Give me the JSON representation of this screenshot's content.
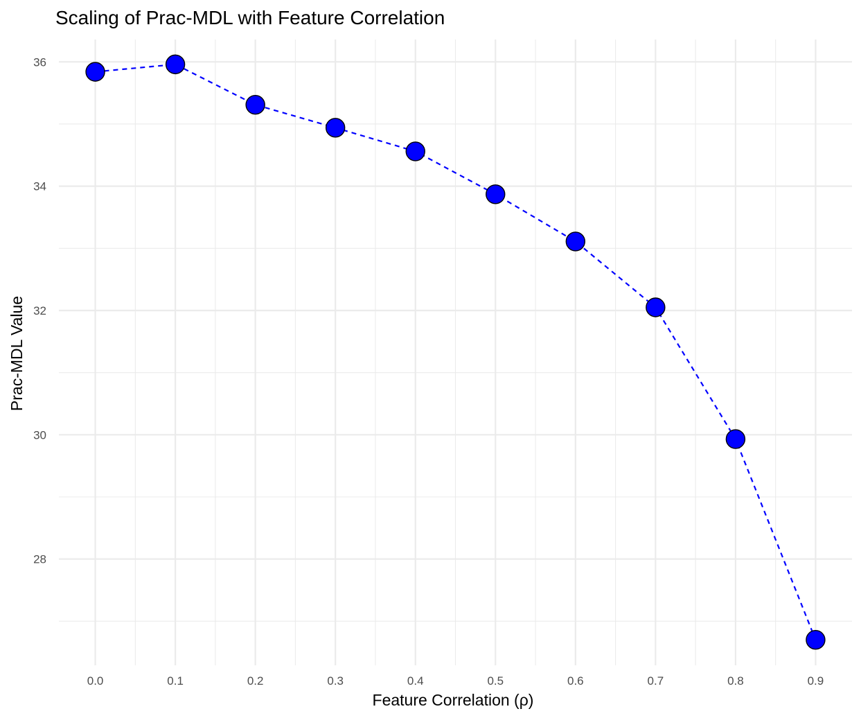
{
  "chart_data": {
    "type": "line",
    "title": "Scaling of Prac-MDL with Feature Correlation",
    "xlabel": "Feature Correlation (ρ)",
    "ylabel": "Prac-MDL Value",
    "x": [
      0.0,
      0.1,
      0.2,
      0.3,
      0.4,
      0.5,
      0.6,
      0.7,
      0.8,
      0.9
    ],
    "series": [
      {
        "values": [
          35.84,
          35.96,
          35.31,
          34.94,
          34.56,
          33.87,
          33.11,
          32.05,
          29.93,
          26.7
        ],
        "line_style": "dashed",
        "line_color": "#0000ff",
        "marker_fill": "#0000ff",
        "marker_edge": "#000000"
      }
    ],
    "xticks": [
      "0.0",
      "0.1",
      "0.2",
      "0.3",
      "0.4",
      "0.5",
      "0.6",
      "0.7",
      "0.8",
      "0.9"
    ],
    "yticks": [
      "28",
      "30",
      "32",
      "34",
      "36"
    ],
    "xlim": [
      -0.0455,
      0.9455
    ],
    "ylim": [
      26.29,
      36.36
    ],
    "grid": true,
    "legend": "none"
  }
}
